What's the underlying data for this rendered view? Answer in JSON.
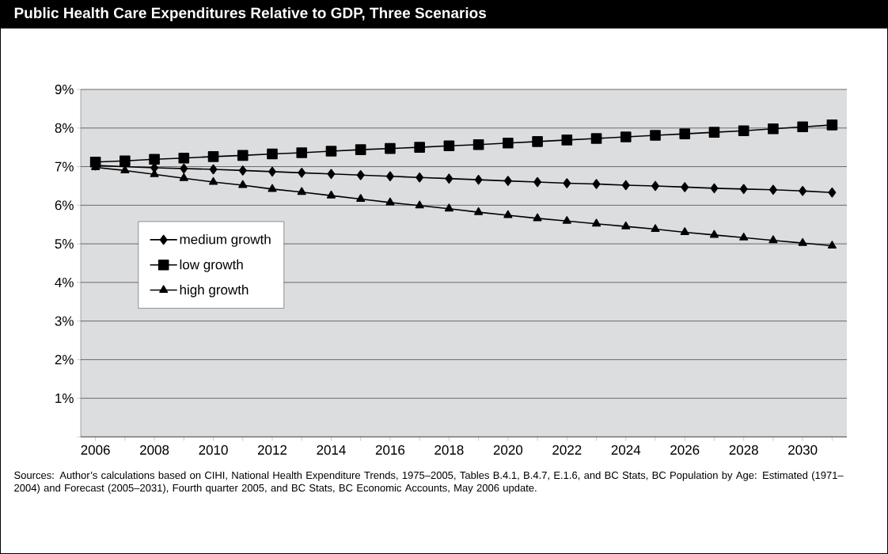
{
  "chart_data": {
    "type": "line",
    "title": "Public Health Care Expenditures Relative to GDP, Three Scenarios",
    "categories": [
      "2006",
      null,
      "2008",
      null,
      "2010",
      null,
      "2012",
      null,
      "2014",
      null,
      "2016",
      null,
      "2018",
      null,
      "2020",
      null,
      "2022",
      null,
      "2024",
      null,
      "2026",
      null,
      "2028",
      null,
      "2030",
      null
    ],
    "series": [
      {
        "name": "medium growth",
        "color": "#000000",
        "marker": "diamond",
        "values": [
          7.03,
          null,
          6.97,
          6.95,
          6.93,
          6.9,
          6.87,
          6.84,
          6.81,
          6.78,
          6.75,
          6.72,
          6.69,
          6.66,
          6.63,
          6.6,
          6.57,
          6.55,
          6.52,
          6.5,
          6.47,
          6.44,
          6.42,
          6.4,
          6.37,
          6.33
        ]
      },
      {
        "name": "low growth",
        "color": "#000000",
        "marker": "square",
        "values": [
          7.12,
          7.15,
          7.19,
          7.22,
          7.26,
          7.29,
          7.33,
          7.36,
          7.4,
          7.44,
          7.47,
          7.5,
          7.54,
          7.57,
          7.61,
          7.65,
          7.69,
          7.73,
          7.77,
          7.81,
          7.85,
          7.89,
          7.93,
          7.98,
          8.03,
          8.08
        ]
      },
      {
        "name": "high growth",
        "color": "#000000",
        "marker": "triangle",
        "values": [
          6.98,
          6.9,
          6.8,
          6.7,
          6.6,
          6.52,
          6.42,
          6.34,
          6.25,
          6.16,
          6.07,
          5.99,
          5.91,
          5.82,
          5.74,
          5.66,
          5.59,
          5.52,
          5.45,
          5.38,
          5.3,
          5.23,
          5.16,
          5.09,
          5.02,
          4.95
        ]
      }
    ],
    "ylim": [
      0,
      9
    ],
    "yticks": [
      {
        "value": 0,
        "label": null
      },
      {
        "value": 1,
        "label": "1%"
      },
      {
        "value": 2,
        "label": "2%"
      },
      {
        "value": 3,
        "label": "3%"
      },
      {
        "value": 4,
        "label": "4%"
      },
      {
        "value": 5,
        "label": "5%"
      },
      {
        "value": 6,
        "label": "6%"
      },
      {
        "value": 7,
        "label": "7%"
      },
      {
        "value": 8,
        "label": "8%"
      },
      {
        "value": 9,
        "label": "9%"
      }
    ],
    "grid": "y",
    "legend": "left",
    "line_style": "solid",
    "annotations": [
      "Sources: Author’s calculations based on CIHI, National Health Expenditure Trends, 1975–2005, Tables B.4.1, B.4.7, E.1.6, and BC Stats, BC Population by Age: Estimated (1971–2004) and Forecast (2005–2031), Fourth quarter 2005, and BC Stats, BC Economic Accounts, May 2006 update."
    ]
  }
}
